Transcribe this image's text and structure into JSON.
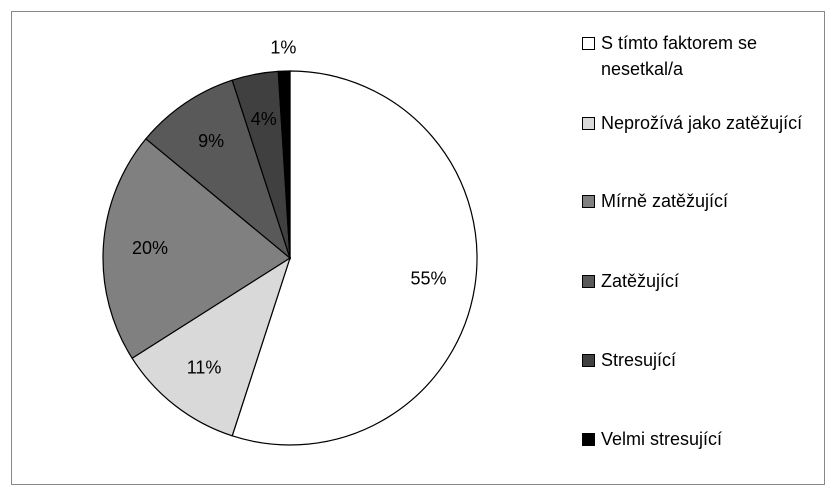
{
  "chart_data": {
    "type": "pie",
    "categories": [
      "S tímto faktorem se nesetkal/a",
      "Neprožívá jako zatěžující",
      "Mírně zatěžující",
      "Zatěžující",
      "Stresující",
      "Velmi stresující"
    ],
    "values": [
      55,
      11,
      20,
      9,
      4,
      1
    ],
    "value_labels": [
      "55%",
      "11%",
      "20%",
      "9%",
      "4%",
      "1%"
    ],
    "colors": [
      "#ffffff",
      "#d9d9d9",
      "#808080",
      "#595959",
      "#404040",
      "#000000"
    ],
    "legend": "right"
  }
}
